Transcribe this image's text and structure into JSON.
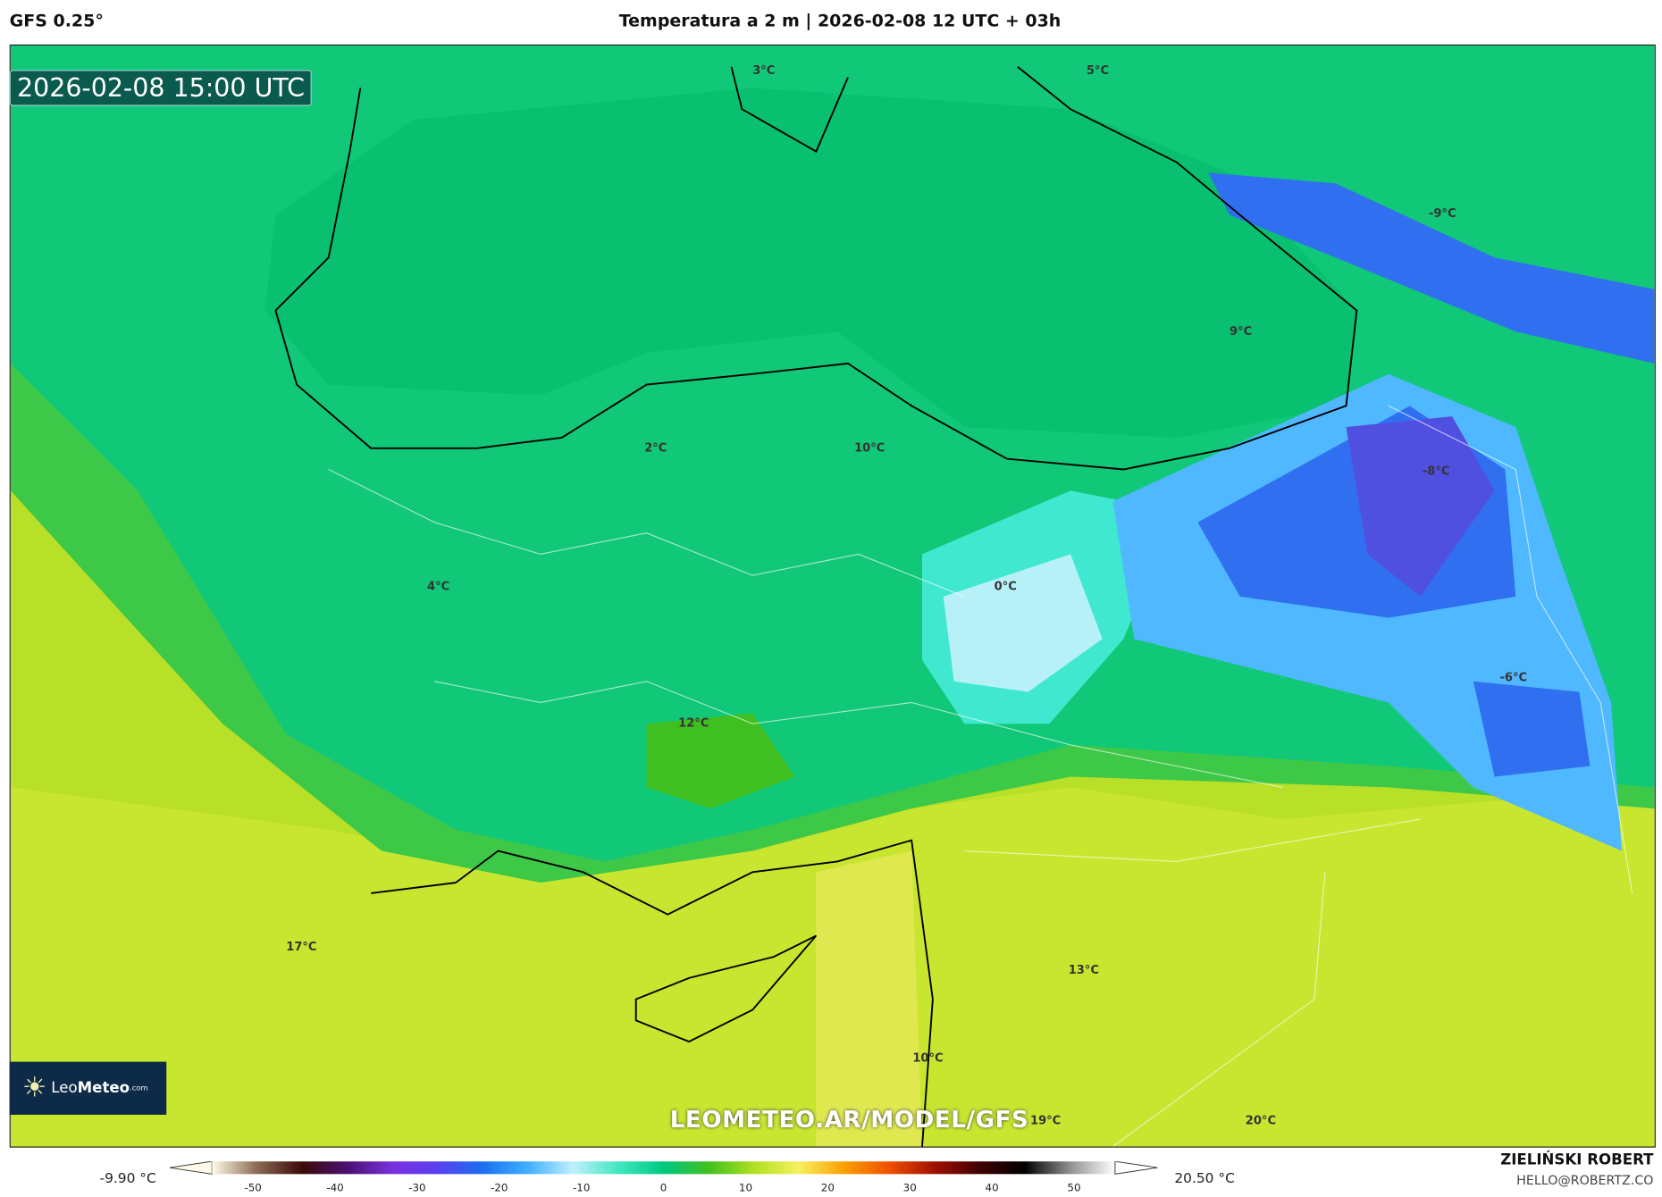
{
  "header": {
    "model": "GFS 0.25°",
    "title": "Temperatura a 2 m | 2026-02-08 12 UTC + 03h"
  },
  "map": {
    "valid_time": "2026-02-08 15:00 UTC",
    "watermark": "LEOMETEO.AR/MODEL/GFS",
    "logo": {
      "text_light": "Leo",
      "text_bold": "Meteo",
      "suffix": ".com"
    },
    "labels": [
      "3°C",
      "5°C",
      "-9°C",
      "9°C",
      "2°C",
      "10°C",
      "-8°C",
      "4°C",
      "0°C",
      "-6°C",
      "12°C",
      "17°C",
      "13°C",
      "10°C",
      "19°C",
      "20°C"
    ]
  },
  "colorbar": {
    "min_label": "-9.90 °C",
    "max_label": "20.50 °C",
    "ticks": [
      "-50",
      "-40",
      "-30",
      "-20",
      "-10",
      "0",
      "10",
      "20",
      "30",
      "40",
      "50"
    ],
    "range": [
      -55,
      55
    ],
    "colors": [
      "#fffbe8",
      "#8a6a50",
      "#3a0a0a",
      "#4a1070",
      "#7a30e0",
      "#5a40f0",
      "#1a70f0",
      "#40b0ff",
      "#c0f0ff",
      "#40e8c0",
      "#00c880",
      "#40c020",
      "#b0e020",
      "#f8f060",
      "#f8a000",
      "#f05000",
      "#a01000",
      "#400000",
      "#000000",
      "#909090",
      "#ffffff"
    ]
  },
  "author": {
    "name": "ZIELIŃSKI ROBERT",
    "email": "HELLO@ROBERTZ.CO"
  }
}
